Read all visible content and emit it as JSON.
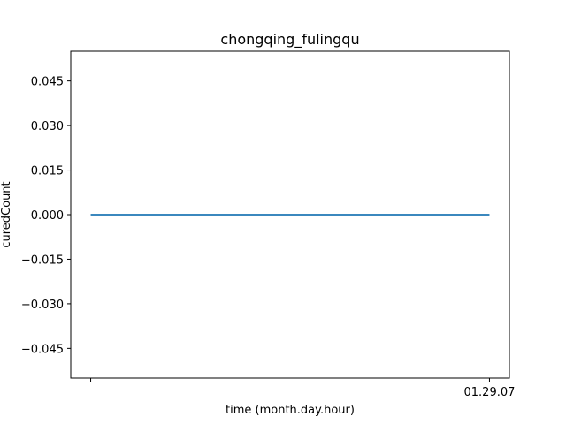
{
  "chart_data": {
    "type": "line",
    "title": "chongqing_fulingqu",
    "xlabel": "time (month.day.hour)",
    "ylabel": "curedCount",
    "x_tick_labels": [
      "",
      "01.29.07"
    ],
    "series": [
      {
        "x": [
          0,
          1
        ],
        "values": [
          0,
          0
        ],
        "color": "#1f77b4"
      }
    ],
    "y_ticks": [
      0.045,
      0.03,
      0.015,
      0.0,
      -0.015,
      -0.03,
      -0.045
    ],
    "y_tick_labels": [
      "0.045",
      "0.030",
      "0.015",
      "0.000",
      "−0.015",
      "−0.030",
      "−0.045"
    ],
    "ylim": [
      -0.055,
      0.055
    ],
    "xlim": [
      -0.05,
      1.05
    ],
    "grid": false,
    "legend": "none"
  }
}
